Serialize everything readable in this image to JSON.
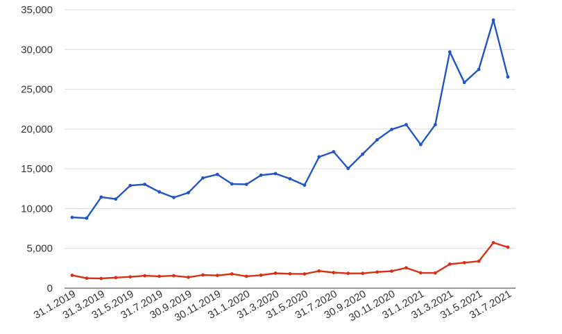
{
  "chart_data": {
    "type": "line",
    "title": "",
    "xlabel": "",
    "ylabel": "",
    "ylim": [
      0,
      35000
    ],
    "y_ticks": [
      0,
      5000,
      10000,
      15000,
      20000,
      25000,
      30000,
      35000
    ],
    "y_tick_labels": [
      "0",
      "5,000",
      "10,000",
      "15,000",
      "20,000",
      "25,000",
      "30,000",
      "35,000"
    ],
    "x": [
      "31.1.2019",
      "28.2.2019",
      "31.3.2019",
      "30.4.2019",
      "31.5.2019",
      "30.6.2019",
      "31.7.2019",
      "31.8.2019",
      "30.9.2019",
      "31.10.2019",
      "30.11.2019",
      "31.12.2019",
      "31.1.2020",
      "29.2.2020",
      "31.3.2020",
      "30.4.2020",
      "31.5.2020",
      "30.6.2020",
      "31.7.2020",
      "31.8.2020",
      "30.9.2020",
      "31.10.2020",
      "30.11.2020",
      "31.12.2020",
      "31.1.2021",
      "28.2.2021",
      "31.3.2021",
      "30.4.2021",
      "31.5.2021",
      "30.6.2021",
      "31.7.2021"
    ],
    "x_tick_labels": [
      "31.1.2019",
      "31.3.2019",
      "31.5.2019",
      "31.7.2019",
      "30.9.2019",
      "30.11.2019",
      "31.1.2020",
      "31.3.2020",
      "31.5.2020",
      "31.7.2020",
      "30.9.2020",
      "30.11.2020",
      "31.1.2021",
      "31.3.2021",
      "31.5.2021",
      "31.7.2021"
    ],
    "grid": true,
    "legend": "none",
    "series": [
      {
        "color": "#2255c4",
        "values": [
          8900,
          8800,
          11450,
          11200,
          12900,
          13050,
          12100,
          11400,
          12000,
          13850,
          14300,
          13100,
          13050,
          14200,
          14400,
          13750,
          12950,
          16500,
          17150,
          15050,
          16850,
          18650,
          19950,
          20550,
          18050,
          20550,
          29700,
          25850,
          27500,
          33700,
          26550
        ]
      },
      {
        "color": "#d93015",
        "values": [
          1620,
          1250,
          1220,
          1330,
          1420,
          1560,
          1490,
          1560,
          1370,
          1660,
          1600,
          1790,
          1490,
          1630,
          1880,
          1810,
          1790,
          2160,
          1960,
          1860,
          1860,
          2030,
          2140,
          2560,
          1930,
          1910,
          3020,
          3200,
          3390,
          5720,
          5150
        ]
      }
    ]
  }
}
